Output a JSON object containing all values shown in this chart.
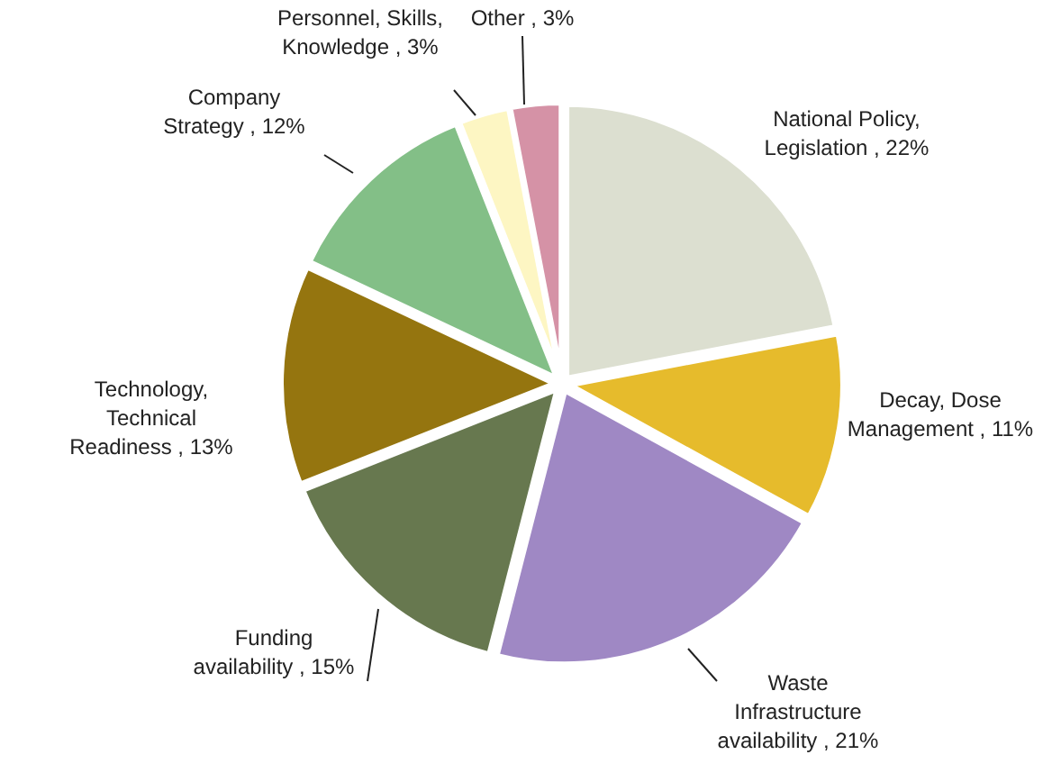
{
  "chart_data": {
    "type": "pie",
    "categories": [
      "National Policy, Legislation",
      "Decay, Dose Management",
      "Waste Infrastructure availability",
      "Funding availability",
      "Technology, Technical Readiness",
      "Company Strategy",
      "Personnel, Skills, Knowledge",
      "Other"
    ],
    "values": [
      22,
      11,
      21,
      15,
      13,
      12,
      3,
      3
    ],
    "value_labels": [
      "22%",
      "11%",
      "21%",
      "15%",
      "13%",
      "12%",
      "3%",
      "3%"
    ],
    "colors": [
      "#dcdfd0",
      "#e6bb2c",
      "#9f88c4",
      "#67784f",
      "#95750f",
      "#83bf87",
      "#fdf6c3",
      "#d592a6"
    ]
  }
}
